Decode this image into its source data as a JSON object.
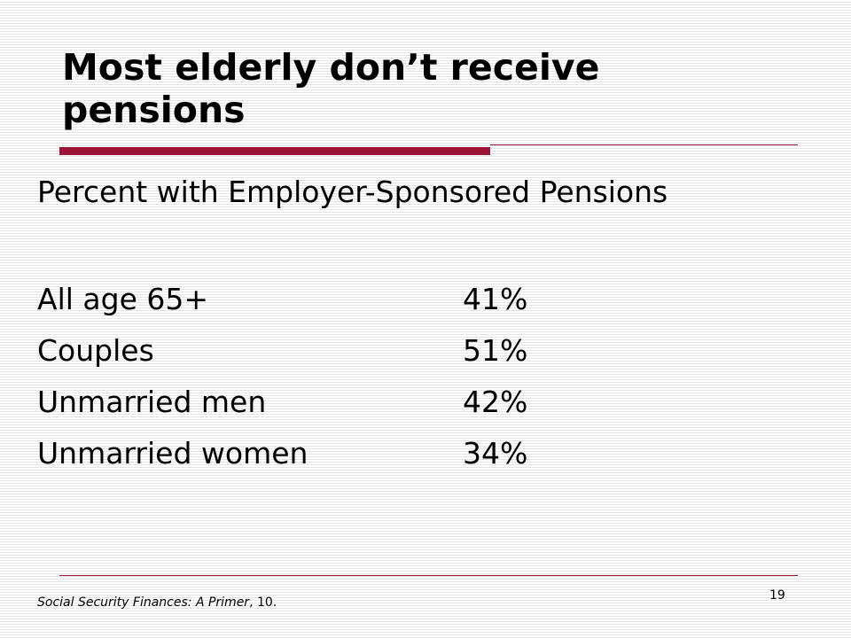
{
  "slide": {
    "title": "Most elderly don’t receive pensions",
    "subheading": "Percent with Employer-Sponsored Pensions",
    "rows": [
      {
        "group": "All age 65+",
        "percent": "41%"
      },
      {
        "group": "Couples",
        "percent": "51%"
      },
      {
        "group": "Unmarried men",
        "percent": "42%"
      },
      {
        "group": "Unmarried women",
        "percent": "34%"
      }
    ],
    "citation": {
      "source_title": "Social Security Finances:  A Primer",
      "page_ref": ", 10."
    },
    "slide_number": "19"
  },
  "colors": {
    "accent": "#9c1436",
    "stripe": "#e4e4e4",
    "background": "#ffffff",
    "text": "#000000"
  }
}
